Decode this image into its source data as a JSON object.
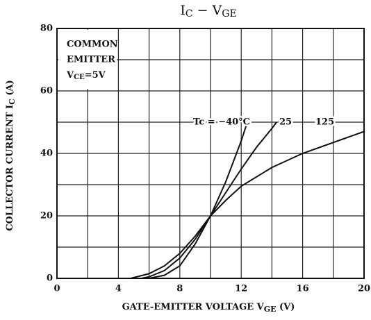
{
  "chart_data": {
    "type": "line",
    "title": [
      "I",
      "C",
      " − V",
      "GE"
    ],
    "x_label": [
      "GATE-EMITTER VOLTAGE  V",
      "GE",
      "  (V)"
    ],
    "y_label": [
      "COLLECTOR CURRENT  I",
      "C",
      "  (A)"
    ],
    "annotation": [
      "COMMON",
      "EMITTER",
      "V",
      "CE",
      "=5V"
    ],
    "xlim": [
      0,
      20
    ],
    "xticks": [
      0,
      4,
      8,
      12,
      16,
      20
    ],
    "xminorticks": [
      2,
      6,
      10,
      14,
      18
    ],
    "ylim": [
      0,
      80
    ],
    "yticks": [
      0,
      20,
      40,
      60,
      80
    ],
    "yminorticks": [
      10,
      30,
      50,
      70
    ],
    "grid": true,
    "color": "#111111",
    "series": [
      {
        "name": "Tc = −40°C",
        "color": "#111111",
        "x": [
          6,
          7,
          8,
          9,
          10,
          11,
          12,
          12.4
        ],
        "values": [
          0,
          1,
          4,
          11,
          20,
          31,
          44,
          50
        ]
      },
      {
        "name": "25",
        "color": "#111111",
        "x": [
          5.5,
          6,
          7,
          8,
          9,
          10,
          11,
          12,
          13,
          14,
          14.3
        ],
        "values": [
          0,
          0.5,
          2.5,
          6.5,
          12.5,
          20,
          27.5,
          35,
          42,
          48,
          50
        ]
      },
      {
        "name": "125",
        "color": "#111111",
        "x": [
          4.8,
          6,
          7,
          8,
          9,
          10,
          11,
          12,
          14,
          16,
          18,
          20
        ],
        "values": [
          0,
          1.5,
          4,
          8,
          13.5,
          20,
          25,
          29.5,
          35.5,
          40,
          43.5,
          47
        ]
      }
    ]
  }
}
